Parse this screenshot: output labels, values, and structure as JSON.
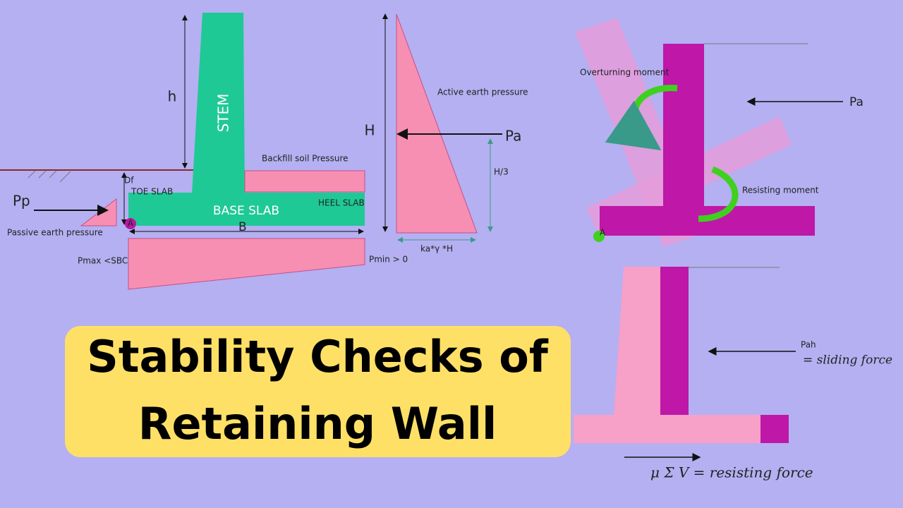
{
  "title": {
    "lines": [
      "Stability Checks of",
      "Retaining Wall"
    ]
  },
  "wall_diagram": {
    "h": "h",
    "stem": "STEM",
    "df": "Df",
    "toe_slab": "TOE SLAB",
    "base_slab": "BASE SLAB",
    "heel_slab": "HEEL SLAB",
    "backfill": "Backfill soil Pressure",
    "pp": "Pp",
    "passive": "Passive earth pressure",
    "a": "A",
    "b": "B",
    "pmax": "Pmax <SBC",
    "pmin": "Pmin > 0"
  },
  "active_pressure": {
    "h": "H",
    "pa": "Pa",
    "label": "Active earth pressure",
    "h3": "H/3",
    "base": "ka*γ *H"
  },
  "overturning": {
    "overturning": "Overturning moment",
    "pa": "Pa",
    "resisting": "Resisting moment",
    "a": "A"
  },
  "sliding": {
    "pah": "Pah",
    "sliding": "= sliding force",
    "resisting": "μ Σ V = resisting force"
  }
}
